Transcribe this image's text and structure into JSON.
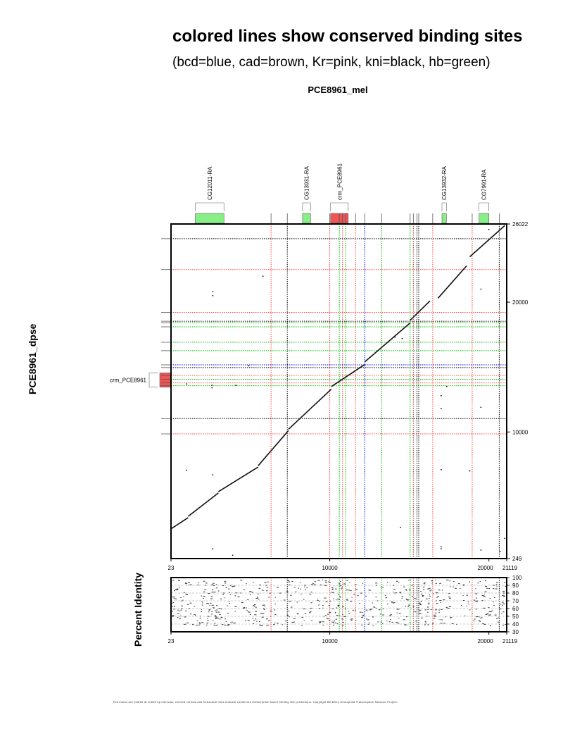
{
  "header": {
    "title": "colored lines show conserved binding sites",
    "subtitle": "(bcd=blue, cad=brown, Kr=pink, kni=black, hb=green)",
    "x_sequence": "PCE8961_mel"
  },
  "y_sequence": "PCE8961_dpse",
  "percent_identity_label": "Percent Identity",
  "footer_text": "Tick marks are plotted at 10000 bp intervals; colored vertical and horizontal lines indicate conserved transcription factor binding site predictions. Copyright Berkeley Drosophila Transcription Network Project.",
  "colors": {
    "bcd": "#0000ff",
    "cad": "#a52a2a",
    "Kr": "#ff4444",
    "kni": "#000000",
    "hb": "#00bb00",
    "gene": "#88ee88",
    "crm": "#ee5555"
  },
  "chart_data": [
    {
      "type": "scatter",
      "name": "dotplot",
      "x_range": [
        23,
        21119
      ],
      "y_range": [
        249,
        26022
      ],
      "x_tick_labels": [
        "23",
        "10000",
        "20000",
        "21119"
      ],
      "y_tick_labels": [
        "249",
        "10000",
        "20000",
        "26022"
      ],
      "x_ticks": [
        23,
        10000,
        20000,
        21119
      ],
      "y_ticks": [
        249,
        10000,
        20000,
        26022
      ],
      "genes": [
        {
          "label": "CG12011-RA",
          "start": 1550,
          "end": 3350,
          "kind": "gene"
        },
        {
          "label": "CG13931-RA",
          "start": 8290,
          "end": 8790,
          "kind": "gene"
        },
        {
          "label": "crm_PCE8961",
          "start": 10050,
          "end": 11160,
          "kind": "crm"
        },
        {
          "label": "CG13932-RA",
          "start": 17050,
          "end": 17330,
          "kind": "gene"
        },
        {
          "label": "CG7991-RA",
          "start": 19380,
          "end": 20000,
          "kind": "gene"
        }
      ],
      "y_features": [
        {
          "label": "crm_PCE8961",
          "start": 13450,
          "end": 14550,
          "kind": "crm"
        }
      ],
      "x_site_lines": [
        {
          "pos": 6310,
          "tf": "Kr"
        },
        {
          "pos": 7330,
          "tf": "kni"
        },
        {
          "pos": 10000,
          "tf": "Kr"
        },
        {
          "pos": 10600,
          "tf": "hb"
        },
        {
          "pos": 10800,
          "tf": "Kr"
        },
        {
          "pos": 11000,
          "tf": "hb"
        },
        {
          "pos": 11620,
          "tf": "Kr"
        },
        {
          "pos": 12200,
          "tf": "bcd"
        },
        {
          "pos": 13260,
          "tf": "hb"
        },
        {
          "pos": 15050,
          "tf": "hb"
        },
        {
          "pos": 15250,
          "tf": "cad"
        },
        {
          "pos": 15480,
          "tf": "kni"
        },
        {
          "pos": 15590,
          "tf": "kni"
        },
        {
          "pos": 16470,
          "tf": "Kr"
        },
        {
          "pos": 18950,
          "tf": "Kr"
        },
        {
          "pos": 20650,
          "tf": "kni"
        }
      ],
      "y_site_lines": [
        {
          "pos": 24890,
          "tf": "kni"
        },
        {
          "pos": 22510,
          "tf": "Kr"
        },
        {
          "pos": 19210,
          "tf": "Kr"
        },
        {
          "pos": 18530,
          "tf": "kni"
        },
        {
          "pos": 18420,
          "tf": "hb"
        },
        {
          "pos": 18100,
          "tf": "hb"
        },
        {
          "pos": 16910,
          "tf": "hb"
        },
        {
          "pos": 16260,
          "tf": "hb"
        },
        {
          "pos": 15170,
          "tf": "bcd"
        },
        {
          "pos": 14960,
          "tf": "kni"
        },
        {
          "pos": 14360,
          "tf": "Kr"
        },
        {
          "pos": 14050,
          "tf": "hb"
        },
        {
          "pos": 13780,
          "tf": "Kr"
        },
        {
          "pos": 13560,
          "tf": "hb"
        },
        {
          "pos": 11030,
          "tf": "kni"
        },
        {
          "pos": 9850,
          "tf": "Kr"
        }
      ],
      "alignment_segments": [
        [
          [
            23,
            2540
          ],
          [
            1100,
            3400
          ]
        ],
        [
          [
            1100,
            3500
          ],
          [
            3000,
            5300
          ]
        ],
        [
          [
            3000,
            5400
          ],
          [
            5500,
            7300
          ]
        ],
        [
          [
            5500,
            7400
          ],
          [
            7400,
            10100
          ]
        ],
        [
          [
            7400,
            10200
          ],
          [
            10100,
            13300
          ]
        ],
        [
          [
            10100,
            13500
          ],
          [
            12200,
            15200
          ]
        ],
        [
          [
            12200,
            15400
          ],
          [
            15050,
            18400
          ]
        ],
        [
          [
            15050,
            18600
          ],
          [
            16300,
            20100
          ]
        ],
        [
          [
            16800,
            20300
          ],
          [
            18600,
            22800
          ]
        ],
        [
          [
            18800,
            23500
          ],
          [
            21000,
            25900
          ]
        ]
      ],
      "scatter_points": [
        [
          2650,
          20800
        ],
        [
          2650,
          20500
        ],
        [
          5800,
          22000
        ],
        [
          1000,
          13700
        ],
        [
          2600,
          13600
        ],
        [
          2600,
          13400
        ],
        [
          4100,
          13600
        ],
        [
          4900,
          15100
        ],
        [
          1000,
          7050
        ],
        [
          2650,
          6700
        ],
        [
          2650,
          1000
        ],
        [
          3900,
          500
        ],
        [
          14100,
          17300
        ],
        [
          14550,
          17200
        ],
        [
          17000,
          11800
        ],
        [
          17000,
          12800
        ],
        [
          17350,
          13500
        ],
        [
          19500,
          11900
        ],
        [
          17000,
          7100
        ],
        [
          18800,
          7000
        ],
        [
          14450,
          2650
        ],
        [
          17000,
          1150
        ],
        [
          17000,
          1000
        ],
        [
          19500,
          900
        ],
        [
          20000,
          25600
        ],
        [
          21100,
          20600
        ],
        [
          21000,
          1800
        ],
        [
          20700,
          800
        ],
        [
          19500,
          21000
        ]
      ]
    },
    {
      "type": "scatter",
      "name": "percent_identity",
      "ylabel": "Percent Identity",
      "x_range": [
        23,
        21119
      ],
      "y_range": [
        30,
        100
      ],
      "x_tick_labels": [
        "23",
        "10000",
        "20000",
        "21119"
      ],
      "y_tick_labels": [
        "100",
        "90",
        "80",
        "70",
        "60",
        "50",
        "40",
        "30"
      ],
      "y_ticks": [
        100,
        90,
        80,
        70,
        60,
        50,
        40,
        30
      ]
    }
  ]
}
